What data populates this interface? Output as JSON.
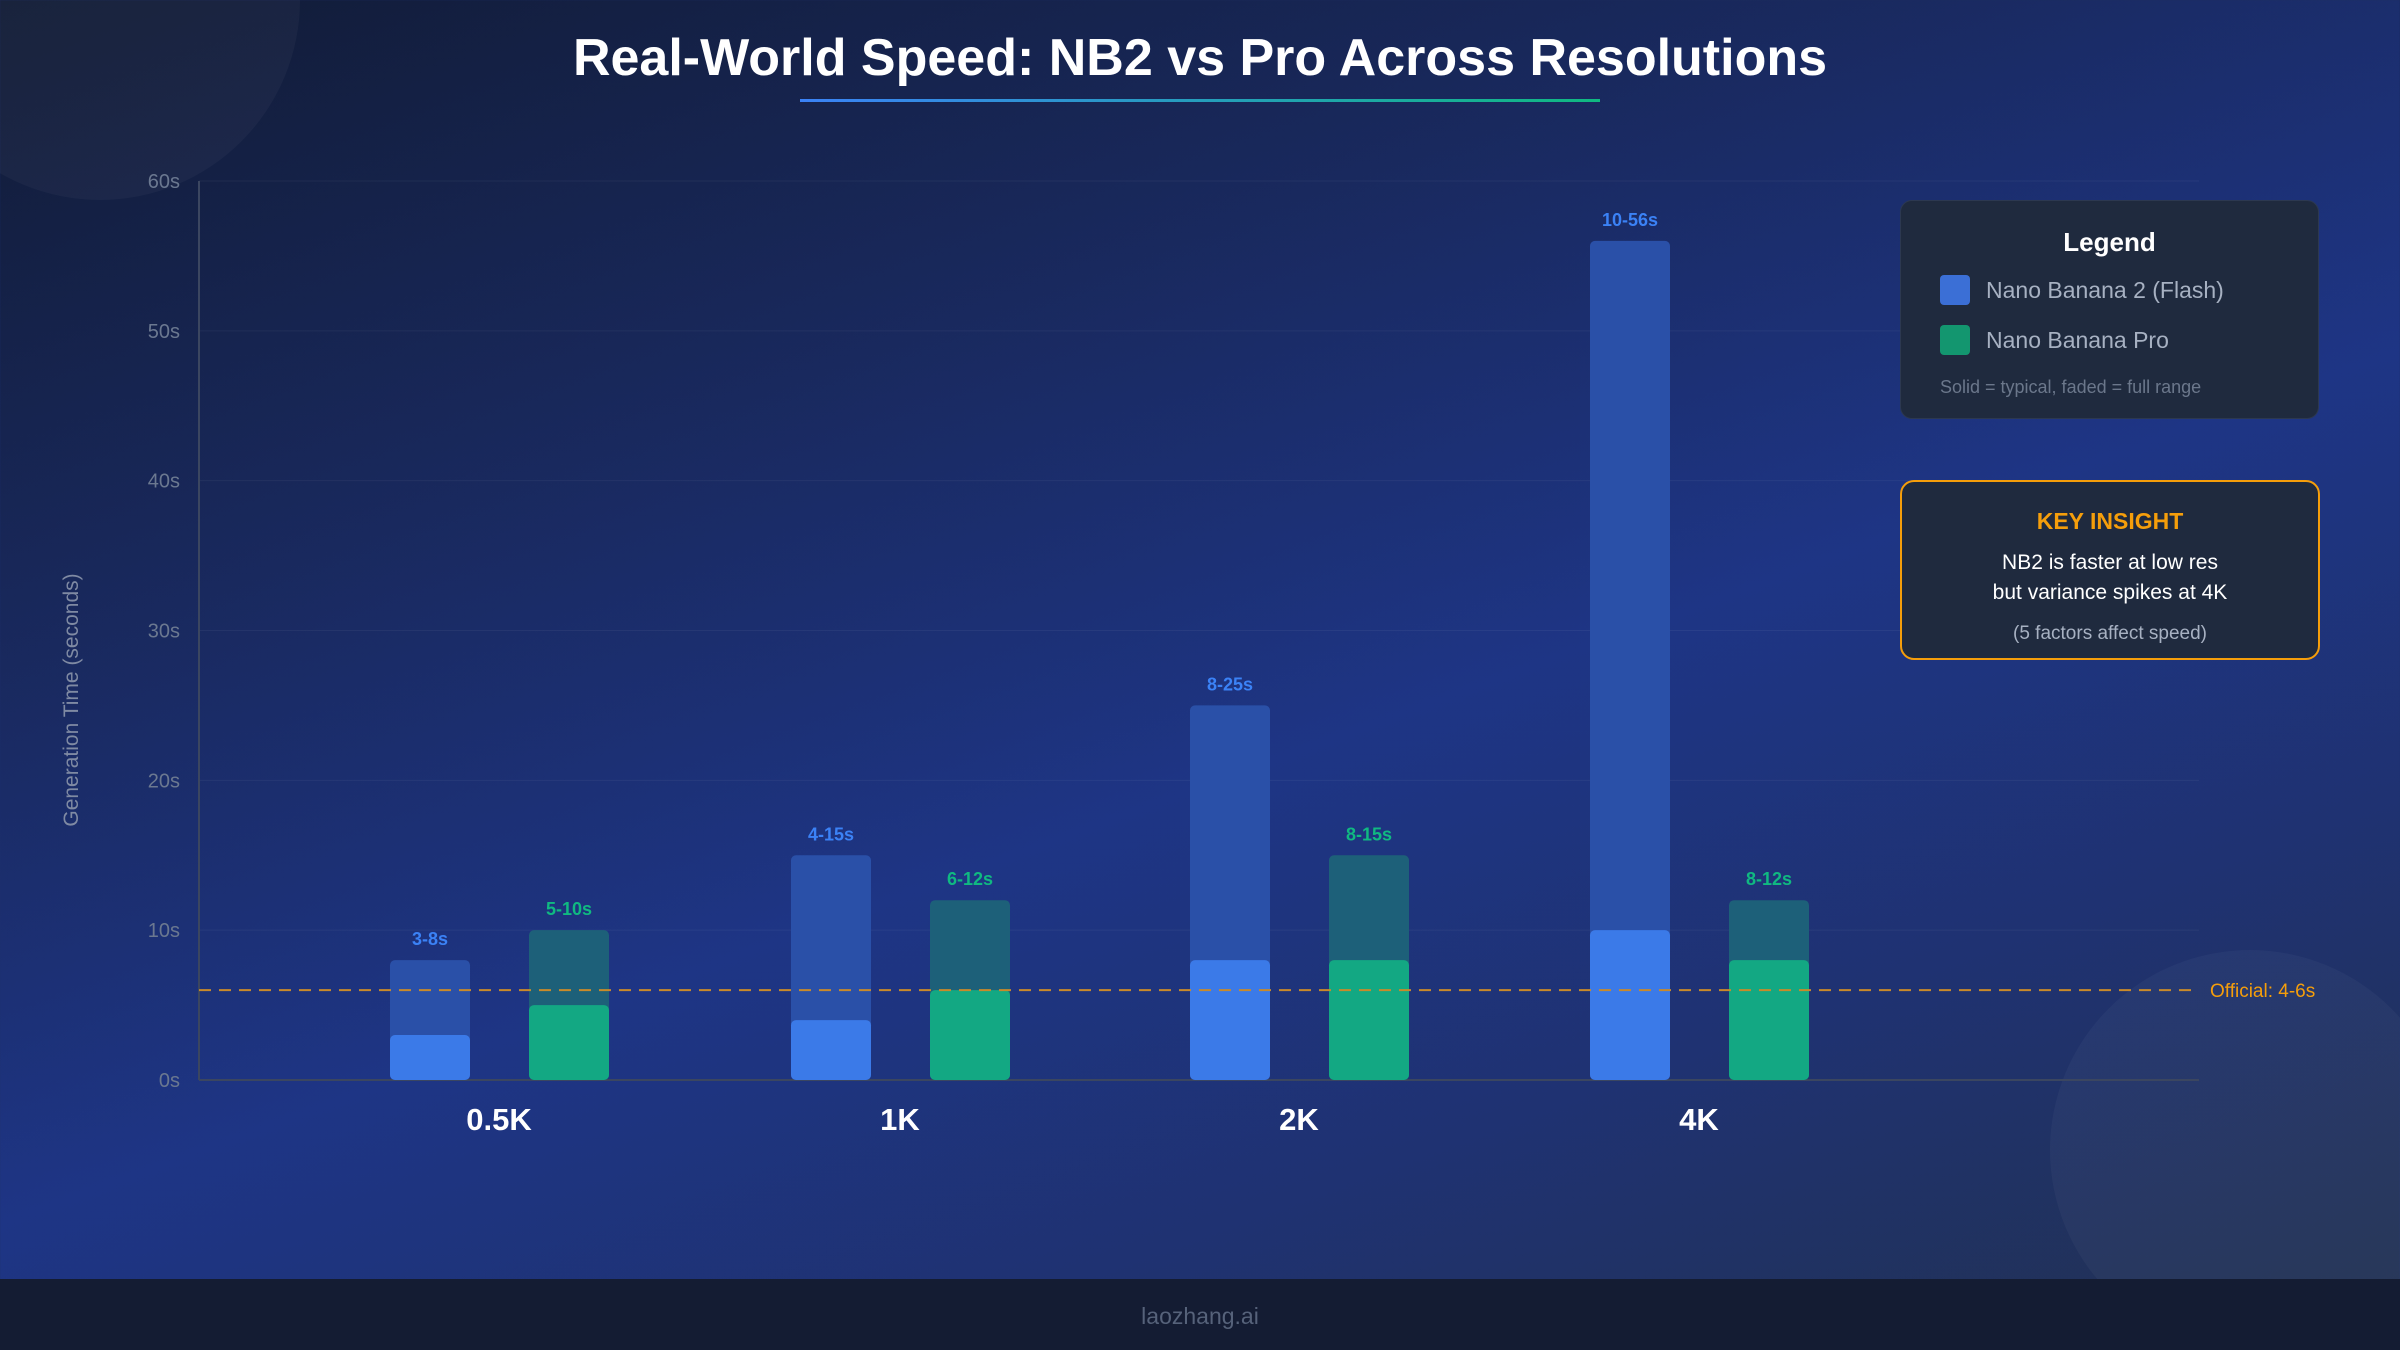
{
  "title": "Real-World Speed: NB2 vs Pro Across Resolutions",
  "chart_data": {
    "type": "bar",
    "categories": [
      "0.5K",
      "1K",
      "2K",
      "4K"
    ],
    "ylabel": "Generation Time (seconds)",
    "ylim": [
      0,
      60
    ],
    "yticks": [
      "0s",
      "10s",
      "20s",
      "30s",
      "40s",
      "50s",
      "60s"
    ],
    "grid": true,
    "series": [
      {
        "name": "Nano Banana 2 (Flash)",
        "color": "#3b7ae8",
        "typical": [
          3,
          4,
          8,
          10
        ],
        "range_min": [
          3,
          4,
          8,
          10
        ],
        "range_max": [
          8,
          15,
          25,
          56
        ],
        "labels": [
          "3-8s",
          "4-15s",
          "8-25s",
          "10-56s"
        ]
      },
      {
        "name": "Nano Banana Pro",
        "color": "#13a883",
        "typical": [
          5,
          6,
          8,
          8
        ],
        "range_min": [
          5,
          6,
          8,
          8
        ],
        "range_max": [
          10,
          12,
          15,
          12
        ],
        "labels": [
          "5-10s",
          "6-12s",
          "8-15s",
          "8-12s"
        ]
      }
    ],
    "reference_line": {
      "value": 6,
      "label": "Official: 4-6s",
      "color": "#f59e0b"
    }
  },
  "legend": {
    "title": "Legend",
    "items": [
      "Nano Banana 2 (Flash)",
      "Nano Banana Pro"
    ],
    "note": "Solid = typical, faded = full range"
  },
  "insight": {
    "title": "KEY INSIGHT",
    "line1": "NB2 is faster at low res",
    "line2": "but variance spikes at 4K",
    "line3": "(5 factors affect speed)"
  },
  "footer": "laozhang.ai"
}
